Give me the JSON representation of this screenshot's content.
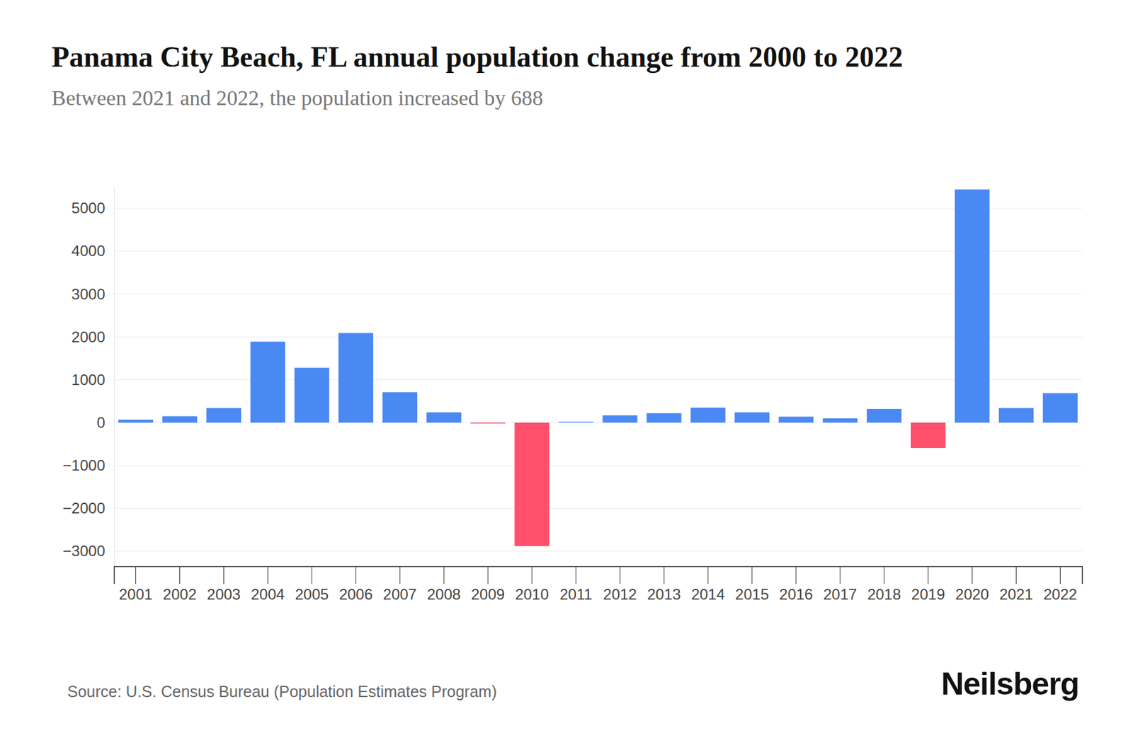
{
  "chart_data": {
    "type": "bar",
    "title": "Panama City Beach, FL annual population change from 2000 to 2022",
    "subtitle": "Between 2021 and 2022, the population increased by 688",
    "source": "Source: U.S. Census Bureau (Population Estimates Program)",
    "brand": "Neilsberg",
    "categories": [
      "2001",
      "2002",
      "2003",
      "2004",
      "2005",
      "2006",
      "2007",
      "2008",
      "2009",
      "2010",
      "2011",
      "2012",
      "2013",
      "2014",
      "2015",
      "2016",
      "2017",
      "2018",
      "2019",
      "2020",
      "2021",
      "2022"
    ],
    "values": [
      70,
      150,
      340,
      1890,
      1280,
      2090,
      710,
      240,
      -20,
      -2880,
      20,
      170,
      220,
      350,
      240,
      140,
      100,
      320,
      -590,
      5440,
      340,
      688
    ],
    "colors": [
      "#4a89f3",
      "#4a89f3",
      "#4a89f3",
      "#4a89f3",
      "#4a89f3",
      "#4a89f3",
      "#4a89f3",
      "#4a89f3",
      "#ff4f6b",
      "#ff4f6b",
      "#4a89f3",
      "#4a89f3",
      "#4a89f3",
      "#4a89f3",
      "#4a89f3",
      "#4a89f3",
      "#4a89f3",
      "#4a89f3",
      "#ff4f6b",
      "#4a89f3",
      "#4a89f3",
      "#4a89f3"
    ],
    "ylim": [
      -3350,
      5500
    ],
    "yticks": [
      {
        "value": -3000,
        "label": "−3000"
      },
      {
        "value": -2000,
        "label": "−2000"
      },
      {
        "value": -1000,
        "label": "−1000"
      },
      0,
      1000,
      2000,
      3000,
      4000,
      5000
    ],
    "grid": true
  }
}
